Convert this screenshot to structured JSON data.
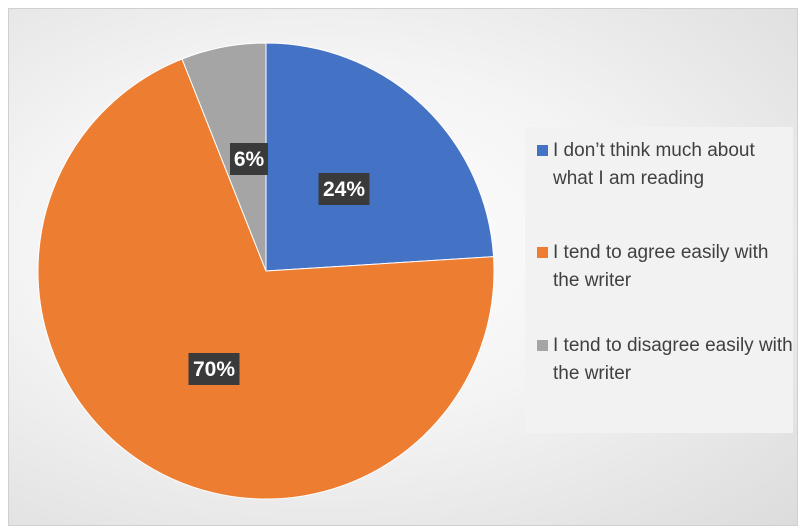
{
  "chart_data": {
    "type": "pie",
    "title": "",
    "slices": [
      {
        "label": "I don’t think much about what I am reading",
        "value": 24,
        "display": "24%",
        "color": "#4472c4"
      },
      {
        "label": "I tend to agree easily with the writer",
        "value": 70,
        "display": "70%",
        "color": "#ed7d31"
      },
      {
        "label": "I tend to disagree easily with the writer",
        "value": 6,
        "display": "6%",
        "color": "#a5a5a5"
      }
    ],
    "legend_position": "right",
    "start_angle": "top, clockwise"
  }
}
